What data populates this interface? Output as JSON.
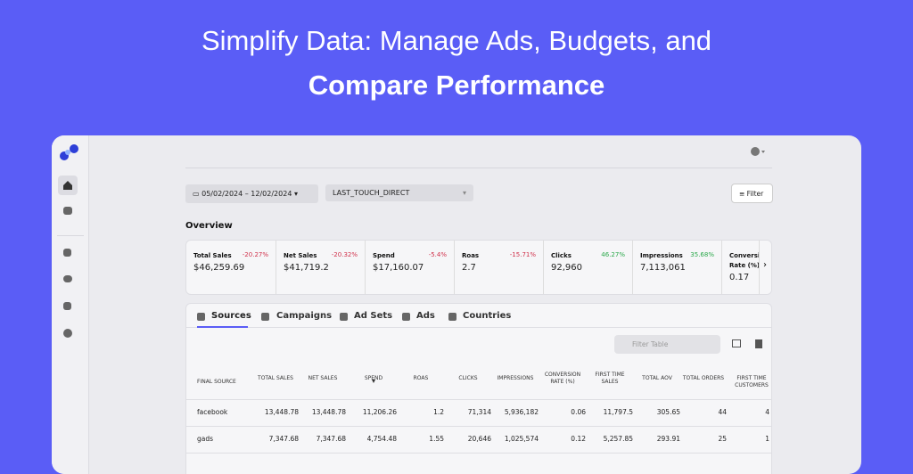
{
  "hero": {
    "line1": "Simplify Data: Manage Ads, Budgets, and",
    "line2": "Compare Performance"
  },
  "filters": {
    "date": "05/02/2024 – 12/02/2024",
    "attribution": "LAST_TOUCH_DIRECT",
    "button": "Filter"
  },
  "overview": {
    "title": "Overview",
    "metrics": [
      {
        "label": "Total Sales",
        "change": "-20.27%",
        "value": "$46,259.69"
      },
      {
        "label": "Net Sales",
        "change": "-20.32%",
        "value": "$41,719.2"
      },
      {
        "label": "Spend",
        "change": "-5.4%",
        "value": "$17,160.07"
      },
      {
        "label": "Roas",
        "change": "-15.71%",
        "value": "2.7"
      },
      {
        "label": "Clicks",
        "change": "46.27%",
        "value": "92,960"
      },
      {
        "label": "Impressions",
        "change": "35.68%",
        "value": "7,113,061"
      },
      {
        "label": "Conversion Rate (%)",
        "value": "0.17"
      }
    ]
  },
  "tabs": [
    "Sources",
    "Campaigns",
    "Ad Sets",
    "Ads",
    "Countries"
  ],
  "table": {
    "search": "Filter Table",
    "headers": [
      "FINAL SOURCE",
      "TOTAL SALES",
      "NET SALES",
      "SPEND",
      "ROAS",
      "CLICKS",
      "IMPRESSIONS",
      "CONVERSION RATE (%)",
      "FIRST TIME SALES",
      "TOTAL AOV",
      "TOTAL ORDERS",
      "FIRST TIME CUSTOMERS"
    ],
    "rows": [
      [
        "facebook",
        "13,448.78",
        "13,448.78",
        "11,206.26",
        "1.2",
        "71,314",
        "5,936,182",
        "0.06",
        "11,797.5",
        "305.65",
        "44",
        "4"
      ],
      [
        "gads",
        "7,347.68",
        "7,347.68",
        "4,754.48",
        "1.55",
        "20,646",
        "1,025,574",
        "0.12",
        "5,257.85",
        "293.91",
        "25",
        "1"
      ]
    ]
  }
}
